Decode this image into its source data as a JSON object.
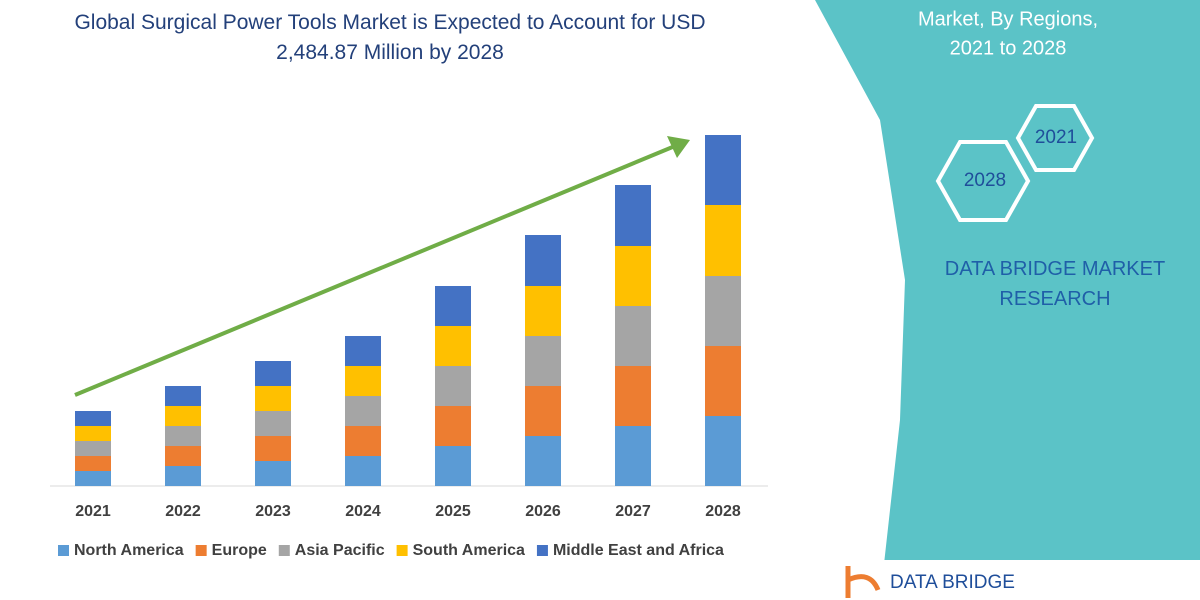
{
  "chart_data": {
    "type": "stacked-bar",
    "title": "Global Surgical Power Tools Market is Expected to Account for USD 2,484.87 Million by 2028",
    "categories": [
      "2021",
      "2022",
      "2023",
      "2024",
      "2025",
      "2026",
      "2027",
      "2028"
    ],
    "series": [
      {
        "name": "North America",
        "color": "#5b9bd5",
        "values": [
          15,
          20,
          25,
          30,
          40,
          50,
          60,
          70
        ]
      },
      {
        "name": "Europe",
        "color": "#ed7d31",
        "values": [
          15,
          20,
          25,
          30,
          40,
          50,
          60,
          70
        ]
      },
      {
        "name": "Asia Pacific",
        "color": "#a5a5a5",
        "values": [
          15,
          20,
          25,
          30,
          40,
          50,
          60,
          70
        ]
      },
      {
        "name": "South America",
        "color": "#ffc000",
        "values": [
          15,
          20,
          25,
          30,
          40,
          50,
          60,
          71
        ]
      },
      {
        "name": "Middle East and Africa",
        "color": "#4472c4",
        "values": [
          15,
          20,
          25,
          30,
          40,
          51,
          61,
          70
        ]
      }
    ],
    "legend": "bottom"
  },
  "panel": {
    "heading": [
      "Market, By Regions,",
      "2021 to 2028"
    ],
    "hexagons": [
      "2021",
      "2028"
    ],
    "company": "DATA BRIDGE MARKET RESEARCH",
    "logo": "DATA BRIDGE"
  }
}
